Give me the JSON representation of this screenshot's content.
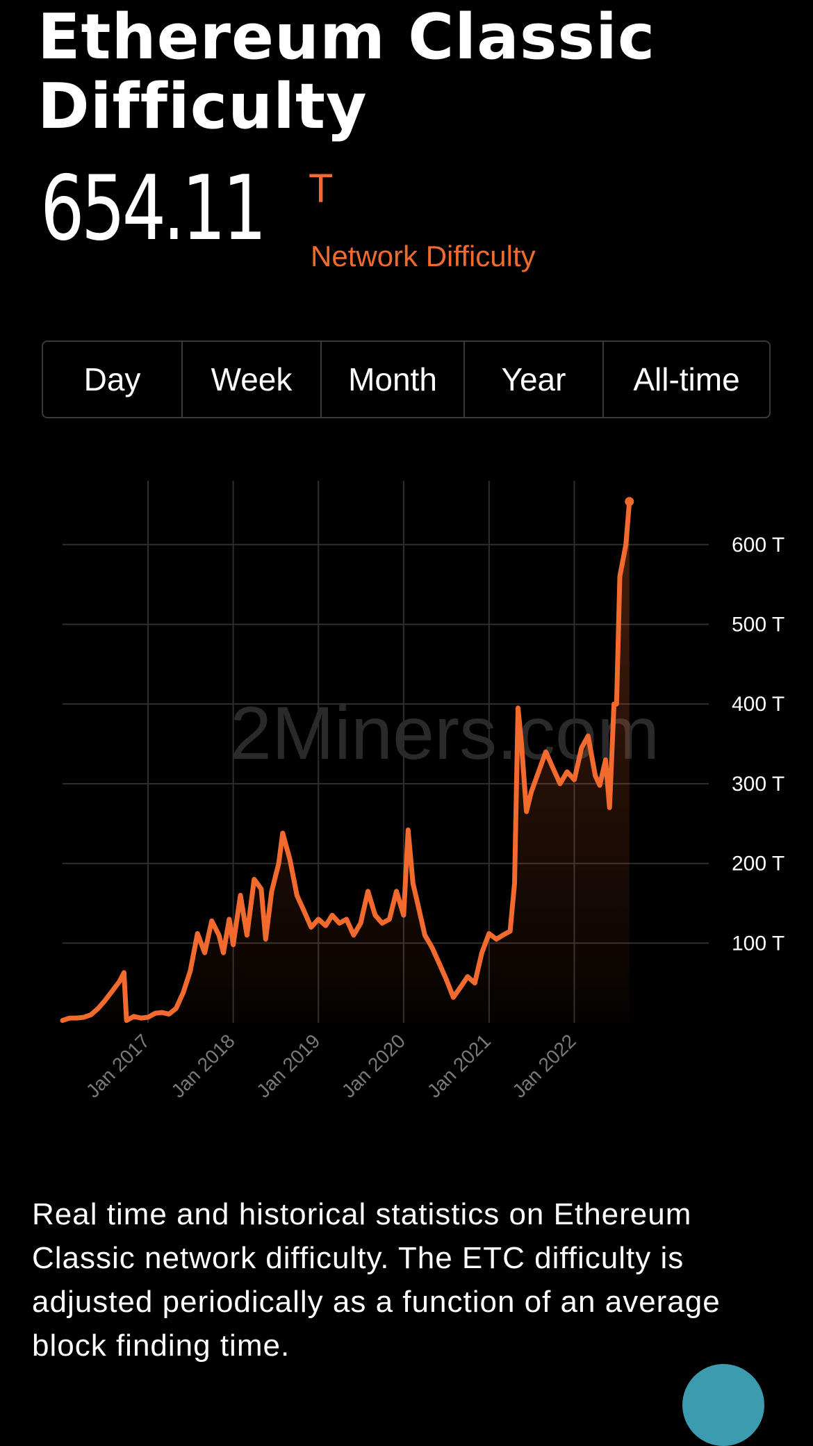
{
  "header": {
    "title": "Ethereum Classic Difficulty",
    "value": "654.11",
    "unit": "T",
    "unit_caption": "Network Difficulty"
  },
  "range_tabs": [
    "Day",
    "Week",
    "Month",
    "Year",
    "All-time"
  ],
  "colors": {
    "accent": "#f26a2e",
    "background": "#000000",
    "grid": "#2f2f2f",
    "watermark": "#2a2a2a"
  },
  "chart_data": {
    "type": "area",
    "watermark": "2Miners.com",
    "x_axis_type": "date",
    "xlim": [
      "2016-01-01",
      "2023-07-31"
    ],
    "ylim": [
      0,
      680
    ],
    "y_unit": "T",
    "y_axis_position": "right",
    "grid": true,
    "x_ticks": [
      {
        "date": "2017-01-01",
        "label": "Jan 2017"
      },
      {
        "date": "2018-01-01",
        "label": "Jan 2018"
      },
      {
        "date": "2019-01-01",
        "label": "Jan 2019"
      },
      {
        "date": "2020-01-01",
        "label": "Jan 2020"
      },
      {
        "date": "2021-01-01",
        "label": "Jan 2021"
      },
      {
        "date": "2022-01-01",
        "label": "Jan 2022"
      }
    ],
    "y_ticks": [
      {
        "value": 100,
        "label": "100 T"
      },
      {
        "value": 200,
        "label": "200 T"
      },
      {
        "value": 300,
        "label": "300 T"
      },
      {
        "value": 400,
        "label": "400 T"
      },
      {
        "value": 500,
        "label": "500 T"
      },
      {
        "value": 600,
        "label": "600 T"
      }
    ],
    "series": [
      {
        "color": "#f26a2e",
        "points": [
          [
            "2016-01-01",
            3
          ],
          [
            "2016-02-01",
            6
          ],
          [
            "2016-03-01",
            6
          ],
          [
            "2016-04-01",
            7
          ],
          [
            "2016-05-01",
            10
          ],
          [
            "2016-06-01",
            18
          ],
          [
            "2016-07-01",
            28
          ],
          [
            "2016-08-01",
            40
          ],
          [
            "2016-09-01",
            52
          ],
          [
            "2016-09-20",
            63
          ],
          [
            "2016-10-01",
            3
          ],
          [
            "2016-11-01",
            8
          ],
          [
            "2016-12-01",
            6
          ],
          [
            "2017-01-01",
            7
          ],
          [
            "2017-02-01",
            12
          ],
          [
            "2017-03-01",
            13
          ],
          [
            "2017-04-01",
            11
          ],
          [
            "2017-05-01",
            18
          ],
          [
            "2017-06-01",
            38
          ],
          [
            "2017-07-01",
            65
          ],
          [
            "2017-08-01",
            112
          ],
          [
            "2017-09-01",
            88
          ],
          [
            "2017-10-01",
            128
          ],
          [
            "2017-11-01",
            110
          ],
          [
            "2017-11-20",
            88
          ],
          [
            "2017-12-15",
            130
          ],
          [
            "2018-01-01",
            98
          ],
          [
            "2018-02-01",
            160
          ],
          [
            "2018-03-01",
            110
          ],
          [
            "2018-04-01",
            180
          ],
          [
            "2018-05-01",
            168
          ],
          [
            "2018-05-20",
            105
          ],
          [
            "2018-06-15",
            165
          ],
          [
            "2018-07-15",
            200
          ],
          [
            "2018-08-01",
            238
          ],
          [
            "2018-09-01",
            205
          ],
          [
            "2018-10-01",
            160
          ],
          [
            "2018-11-01",
            140
          ],
          [
            "2018-12-01",
            120
          ],
          [
            "2019-01-01",
            130
          ],
          [
            "2019-02-01",
            122
          ],
          [
            "2019-03-01",
            135
          ],
          [
            "2019-04-01",
            125
          ],
          [
            "2019-05-01",
            130
          ],
          [
            "2019-06-01",
            110
          ],
          [
            "2019-07-01",
            125
          ],
          [
            "2019-08-01",
            165
          ],
          [
            "2019-09-01",
            135
          ],
          [
            "2019-10-01",
            125
          ],
          [
            "2019-11-01",
            130
          ],
          [
            "2019-12-01",
            165
          ],
          [
            "2020-01-01",
            135
          ],
          [
            "2020-01-20",
            242
          ],
          [
            "2020-02-10",
            175
          ],
          [
            "2020-03-01",
            150
          ],
          [
            "2020-04-01",
            110
          ],
          [
            "2020-05-01",
            95
          ],
          [
            "2020-06-01",
            75
          ],
          [
            "2020-07-01",
            55
          ],
          [
            "2020-08-01",
            32
          ],
          [
            "2020-09-01",
            45
          ],
          [
            "2020-10-01",
            58
          ],
          [
            "2020-11-01",
            50
          ],
          [
            "2020-12-01",
            88
          ],
          [
            "2021-01-01",
            112
          ],
          [
            "2021-02-01",
            105
          ],
          [
            "2021-03-01",
            110
          ],
          [
            "2021-04-01",
            115
          ],
          [
            "2021-04-20",
            175
          ],
          [
            "2021-05-05",
            395
          ],
          [
            "2021-05-20",
            350
          ],
          [
            "2021-06-10",
            265
          ],
          [
            "2021-07-01",
            290
          ],
          [
            "2021-08-01",
            315
          ],
          [
            "2021-09-01",
            340
          ],
          [
            "2021-10-01",
            320
          ],
          [
            "2021-11-01",
            300
          ],
          [
            "2021-12-01",
            315
          ],
          [
            "2022-01-01",
            305
          ],
          [
            "2022-02-01",
            345
          ],
          [
            "2022-03-01",
            360
          ],
          [
            "2022-04-01",
            310
          ],
          [
            "2022-04-20",
            298
          ],
          [
            "2022-05-15",
            330
          ],
          [
            "2022-06-01",
            270
          ],
          [
            "2022-06-20",
            400
          ],
          [
            "2022-07-01",
            400
          ],
          [
            "2022-07-15",
            560
          ],
          [
            "2022-08-10",
            600
          ],
          [
            "2022-08-25",
            654.11
          ]
        ]
      }
    ]
  }
}
